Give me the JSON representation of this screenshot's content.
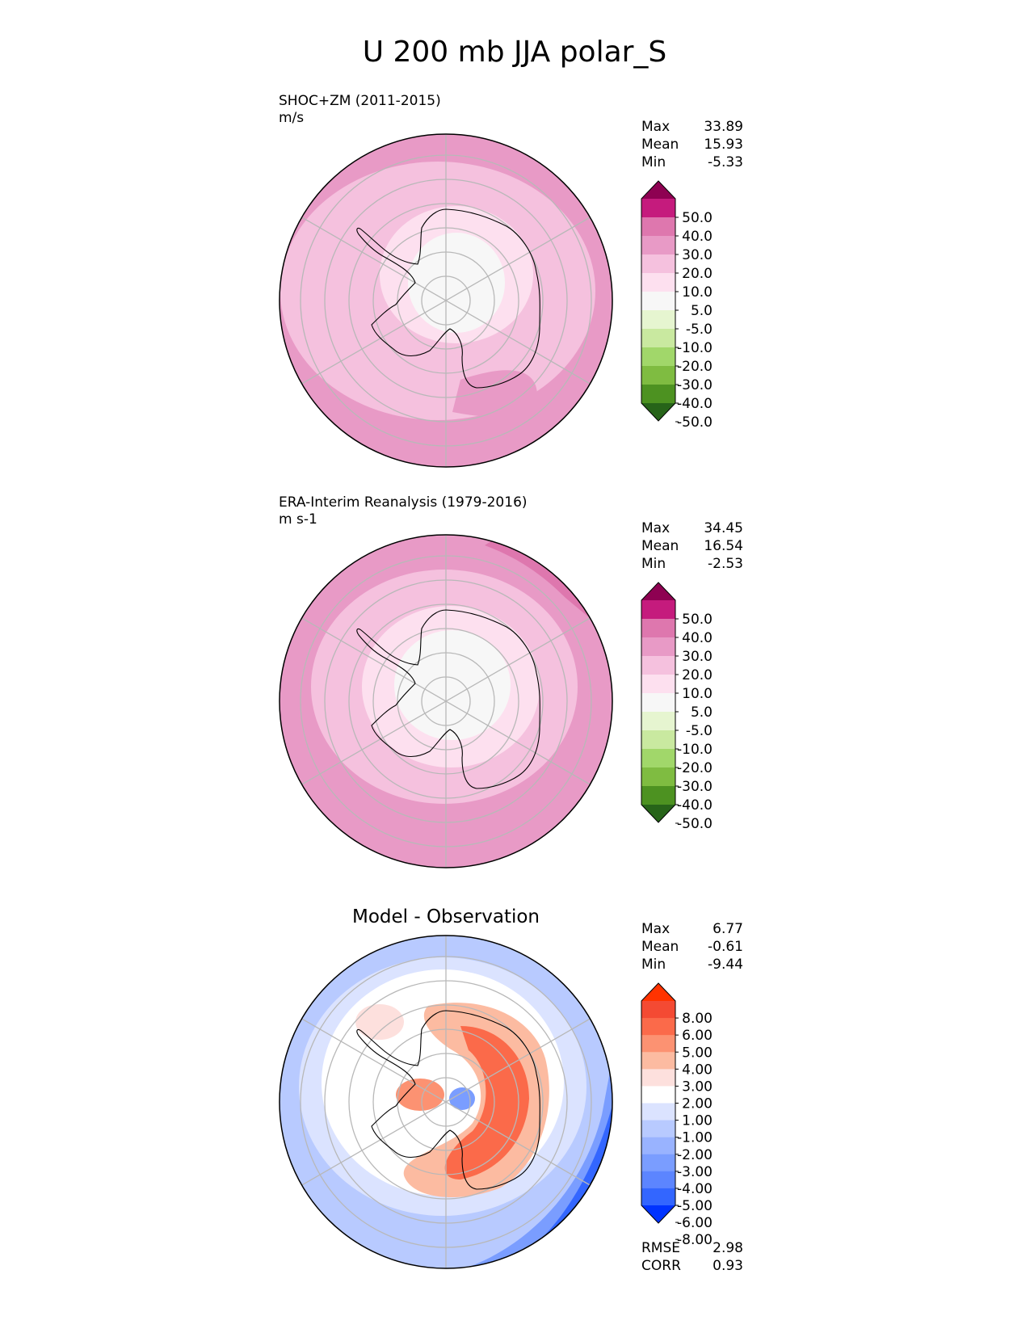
{
  "page_title": "U 200 mb JJA polar_S",
  "stat_labels": {
    "max": "Max",
    "mean": "Mean",
    "min": "Min",
    "rmse": "RMSE",
    "corr": "CORR"
  },
  "colors": {
    "field_levels": [
      "#276419",
      "#4d9221",
      "#7fbc41",
      "#a1d76a",
      "#c9e9a0",
      "#e6f5d0",
      "#f7f7f7",
      "#fde0ef",
      "#f5c1de",
      "#e89ac6",
      "#de77ae",
      "#c51b7d",
      "#8e0152"
    ],
    "diff_levels": [
      "#0033ff",
      "#3366ff",
      "#5c85ff",
      "#7a9dff",
      "#99b3ff",
      "#b8caff",
      "#dbe3ff",
      "#ffffff",
      "#fde0dd",
      "#fcbba1",
      "#fc9272",
      "#fb6a4a",
      "#f44a33",
      "#ff3300"
    ]
  },
  "chart_data": [
    {
      "type": "polar-contour-map",
      "projection": "south-polar-stereographic",
      "title": "SHOC+ZM (2011-2015)",
      "units": "m/s",
      "stats": {
        "max": "33.89",
        "mean": "15.93",
        "min": "-5.33"
      },
      "colorbar_ticks": [
        "50.0",
        "40.0",
        "30.0",
        "20.0",
        "10.0",
        "5.0",
        "-5.0",
        "-10.0",
        "-20.0",
        "-30.0",
        "-40.0",
        "-50.0"
      ],
      "levels": [
        -50,
        -40,
        -30,
        -20,
        -10,
        -5,
        5,
        10,
        20,
        30,
        40,
        50
      ],
      "extend": "both",
      "colormap": "field_levels"
    },
    {
      "type": "polar-contour-map",
      "projection": "south-polar-stereographic",
      "title": "ERA-Interim Reanalysis (1979-2016)",
      "units": "m s-1",
      "stats": {
        "max": "34.45",
        "mean": "16.54",
        "min": "-2.53"
      },
      "colorbar_ticks": [
        "50.0",
        "40.0",
        "30.0",
        "20.0",
        "10.0",
        "5.0",
        "-5.0",
        "-10.0",
        "-20.0",
        "-30.0",
        "-40.0",
        "-50.0"
      ],
      "levels": [
        -50,
        -40,
        -30,
        -20,
        -10,
        -5,
        5,
        10,
        20,
        30,
        40,
        50
      ],
      "extend": "both",
      "colormap": "field_levels"
    },
    {
      "type": "polar-contour-map",
      "projection": "south-polar-stereographic",
      "title": "Model - Observation",
      "units": "",
      "stats": {
        "max": "6.77",
        "mean": "-0.61",
        "min": "-9.44",
        "rmse": "2.98",
        "corr": "0.93"
      },
      "colorbar_ticks": [
        "8.00",
        "6.00",
        "5.00",
        "4.00",
        "3.00",
        "2.00",
        "1.00",
        "-1.00",
        "-2.00",
        "-3.00",
        "-4.00",
        "-5.00",
        "-6.00",
        "-8.00"
      ],
      "levels": [
        -8,
        -6,
        -5,
        -4,
        -3,
        -2,
        -1,
        1,
        2,
        3,
        4,
        5,
        6,
        8
      ],
      "extend": "both",
      "colormap": "diff_levels"
    }
  ]
}
